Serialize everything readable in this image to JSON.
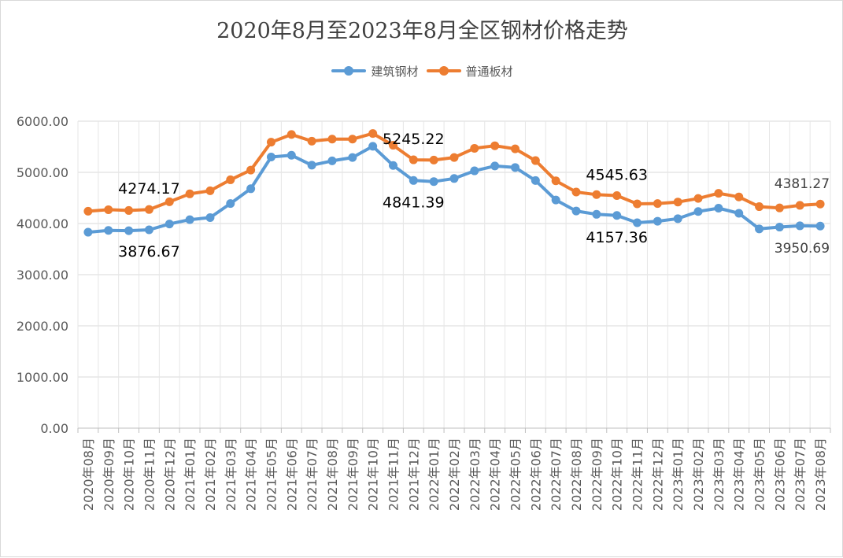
{
  "chart_data": {
    "type": "line",
    "title": "2020年8月至2023年8月全区钢材价格走势",
    "xlabel": "",
    "ylabel": "",
    "ylim": [
      0,
      6000
    ],
    "yticks": [
      "0.00",
      "1000.00",
      "2000.00",
      "3000.00",
      "4000.00",
      "5000.00",
      "6000.00"
    ],
    "grid": true,
    "legend_position": "top",
    "categories": [
      "2020年08月",
      "2020年09月",
      "2020年10月",
      "2020年11月",
      "2020年12月",
      "2021年01月",
      "2021年02月",
      "2021年03月",
      "2021年04月",
      "2021年05月",
      "2021年06月",
      "2021年07月",
      "2021年08月",
      "2021年09月",
      "2021年10月",
      "2021年11月",
      "2021年12月",
      "2022年01月",
      "2022年02月",
      "2022年03月",
      "2022年04月",
      "2022年05月",
      "2022年06月",
      "2022年07月",
      "2022年08月",
      "2022年09月",
      "2022年10月",
      "2022年11月",
      "2022年12月",
      "2023年01月",
      "2023年02月",
      "2023年03月",
      "2023年04月",
      "2023年05月",
      "2023年06月",
      "2023年07月",
      "2023年08月"
    ],
    "series": [
      {
        "name": "建筑钢材",
        "color": "#5b9bd5",
        "values": [
          3830,
          3865,
          3860,
          3876.67,
          3990,
          4075,
          4115,
          4390,
          4680,
          5300,
          5335,
          5140,
          5225,
          5290,
          5510,
          5135,
          4841.39,
          4820,
          4880,
          5030,
          5125,
          5095,
          4840,
          4460,
          4245,
          4180,
          4157.36,
          4015,
          4045,
          4095,
          4235,
          4300,
          4200,
          3895,
          3930,
          3955,
          3950.69
        ]
      },
      {
        "name": "普通板材",
        "color": "#ed7d31",
        "values": [
          4240,
          4270,
          4255,
          4274.17,
          4425,
          4580,
          4640,
          4855,
          5045,
          5590,
          5740,
          5610,
          5650,
          5650,
          5760,
          5530,
          5245.22,
          5240,
          5290,
          5470,
          5520,
          5460,
          5230,
          4835,
          4615,
          4565,
          4545.63,
          4385,
          4390,
          4420,
          4490,
          4590,
          4520,
          4330,
          4305,
          4355,
          4381.27
        ]
      }
    ],
    "data_labels": [
      {
        "series": 1,
        "index": 3,
        "text": "4274.17"
      },
      {
        "series": 0,
        "index": 3,
        "text": "3876.67"
      },
      {
        "series": 1,
        "index": 16,
        "text": "5245.22"
      },
      {
        "series": 0,
        "index": 16,
        "text": "4841.39"
      },
      {
        "series": 1,
        "index": 26,
        "text": "4545.63"
      },
      {
        "series": 0,
        "index": 26,
        "text": "4157.36"
      },
      {
        "series": 1,
        "index": 36,
        "text": "4381.27"
      },
      {
        "series": 0,
        "index": 36,
        "text": "3950.69"
      }
    ]
  }
}
